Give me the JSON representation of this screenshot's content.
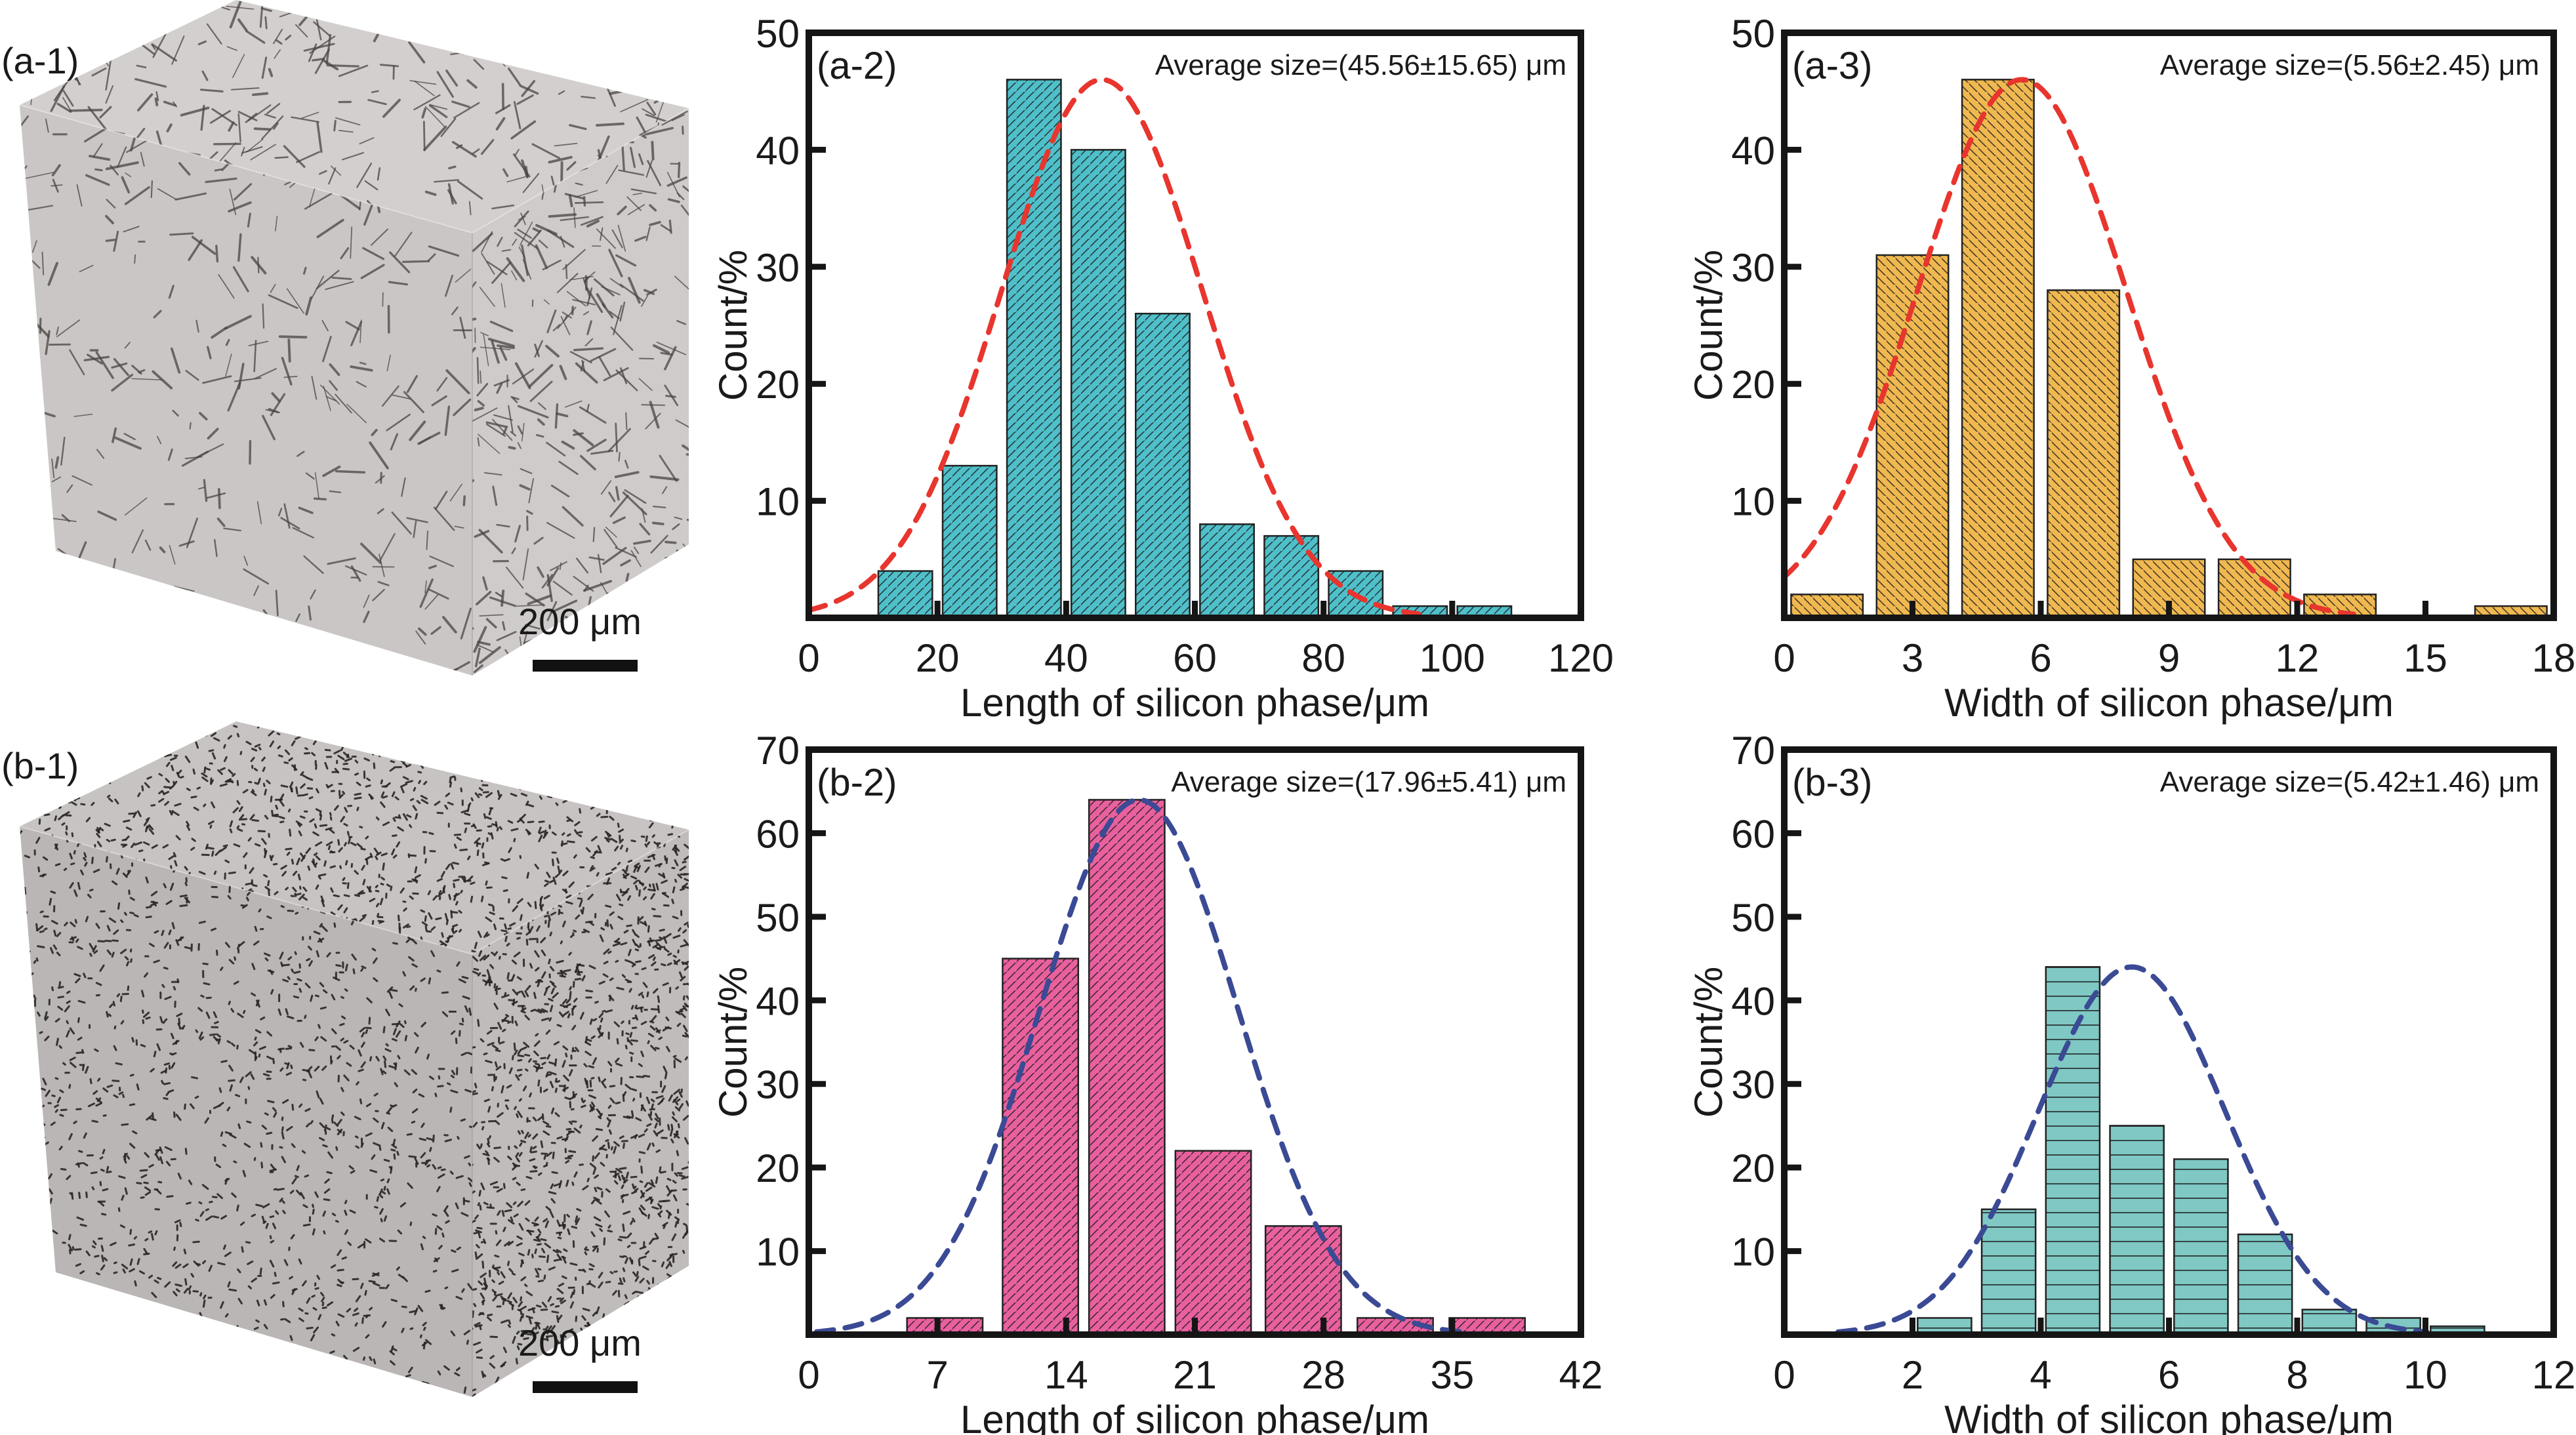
{
  "figure": {
    "panels": {
      "a1": {
        "label": "(a-1)",
        "scale_text": "200 μm",
        "description": "3D rendered cube of microstructure with coarse needle-like silicon phase"
      },
      "b1": {
        "label": "(b-1)",
        "scale_text": "200 μm",
        "description": "3D rendered cube of microstructure with fine fibrous/particulate silicon phase"
      }
    },
    "colors": {
      "teal": "#4fbfc9",
      "gold": "#f0b850",
      "pink": "#e8609e",
      "teal_light": "#7fc8c4",
      "red_fit": "#e8352e",
      "blue_fit": "#3b4a94",
      "axis": "#151515"
    }
  },
  "chart_data": [
    {
      "id": "a2",
      "type": "bar",
      "panel_label": "(a-2)",
      "annotation": "Average size=(45.56±15.65) μm",
      "xlabel": "Length of silicon phase/μm",
      "ylabel": "Count/%",
      "xlim": [
        0,
        120
      ],
      "ylim": [
        0,
        50
      ],
      "xticks": [
        0,
        20,
        40,
        60,
        80,
        100,
        120
      ],
      "yticks": [
        10,
        20,
        30,
        40,
        50
      ],
      "bin_width": 10,
      "bin_centers": [
        15,
        25,
        35,
        45,
        55,
        65,
        75,
        85,
        95,
        105
      ],
      "values": [
        4,
        13,
        46,
        40,
        26,
        8,
        7,
        4,
        1,
        1
      ],
      "fill": "teal",
      "hatch": "forward",
      "fit": {
        "type": "gaussian",
        "mean": 45.56,
        "std": 15.65,
        "peak": 46,
        "color": "red_fit",
        "style": "dashed"
      }
    },
    {
      "id": "a3",
      "type": "bar",
      "panel_label": "(a-3)",
      "annotation": "Average size=(5.56±2.45) μm",
      "xlabel": "Width of silicon phase/μm",
      "ylabel": "Count/%",
      "xlim": [
        0,
        18
      ],
      "ylim": [
        0,
        50
      ],
      "xticks": [
        0,
        3,
        6,
        9,
        12,
        15,
        18
      ],
      "yticks": [
        10,
        20,
        30,
        40,
        50
      ],
      "bin_width": 2,
      "bin_centers": [
        1,
        3,
        5,
        7,
        9,
        11,
        13,
        15,
        17
      ],
      "values": [
        2,
        31,
        46,
        28,
        5,
        5,
        2,
        0,
        1
      ],
      "fill": "gold",
      "hatch": "backward",
      "fit": {
        "type": "gaussian",
        "mean": 5.56,
        "std": 2.45,
        "peak": 46,
        "color": "red_fit",
        "style": "dashed"
      }
    },
    {
      "id": "b2",
      "type": "bar",
      "panel_label": "(b-2)",
      "annotation": "Average size=(17.96±5.41) μm",
      "xlabel": "Length of silicon phase/μm",
      "ylabel": "Count/%",
      "xlim": [
        0,
        42
      ],
      "ylim": [
        0,
        70
      ],
      "xticks": [
        0,
        7,
        14,
        21,
        28,
        35,
        42
      ],
      "yticks": [
        10,
        20,
        30,
        40,
        50,
        60,
        70
      ],
      "bin_width": 4.9,
      "bin_centers": [
        7.4,
        12.6,
        17.3,
        22.0,
        26.9,
        31.9,
        36.9
      ],
      "values": [
        2,
        45,
        64,
        22,
        13,
        2,
        2
      ],
      "fill": "pink",
      "hatch": "forward",
      "fit": {
        "type": "gaussian",
        "mean": 17.96,
        "std": 5.41,
        "peak": 64,
        "color": "blue_fit",
        "style": "dashed"
      }
    },
    {
      "id": "b3",
      "type": "bar",
      "panel_label": "(b-3)",
      "annotation": "Average size=(5.42±1.46) μm",
      "xlabel": "Width of silicon phase/μm",
      "ylabel": "Count/%",
      "xlim": [
        0,
        12
      ],
      "ylim": [
        0,
        70
      ],
      "xticks": [
        0,
        2,
        4,
        6,
        8,
        10,
        12
      ],
      "yticks": [
        10,
        20,
        30,
        40,
        50,
        60,
        70
      ],
      "bin_width": 1,
      "bin_centers": [
        2.5,
        3.5,
        4.5,
        5.5,
        6.5,
        7.5,
        8.5,
        9.5,
        10.5
      ],
      "values": [
        2,
        15,
        44,
        25,
        21,
        12,
        3,
        2,
        1
      ],
      "fill": "teal_light",
      "hatch": "horizontal",
      "fit": {
        "type": "gaussian",
        "mean": 5.42,
        "std": 1.46,
        "peak": 44,
        "color": "blue_fit",
        "style": "dashed"
      }
    }
  ]
}
